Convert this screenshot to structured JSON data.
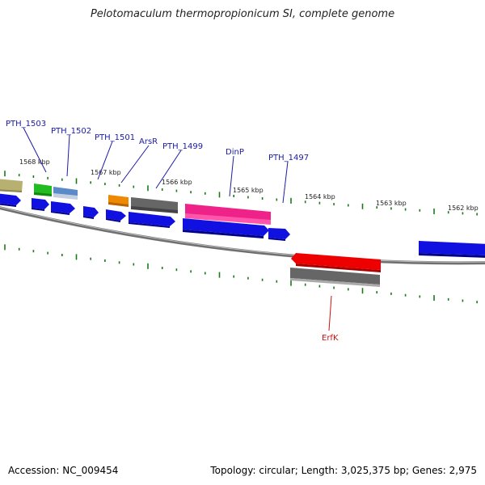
{
  "header": {
    "title": "Pelotomaculum thermopropionicum SI, complete genome"
  },
  "footer": {
    "accession": "Accession: NC_009454",
    "summary": "Topology: circular; Length: 3,025,375 bp; Genes: 2,975"
  },
  "scale_labels": [
    "1568 kbp",
    "1567 kbp",
    "1566 kbp",
    "1565 kbp",
    "1564 kbp",
    "1563 kbp",
    "1562 kbp"
  ],
  "gene_labels": [
    {
      "name": "PTH_1503",
      "strand": "plus"
    },
    {
      "name": "PTH_1502",
      "strand": "plus"
    },
    {
      "name": "PTH_1501",
      "strand": "plus"
    },
    {
      "name": "ArsR",
      "strand": "plus"
    },
    {
      "name": "PTH_1499",
      "strand": "plus"
    },
    {
      "name": "DinP",
      "strand": "plus"
    },
    {
      "name": "PTH_1497",
      "strand": "plus"
    },
    {
      "name": "ErfK",
      "strand": "minus"
    }
  ],
  "colors": {
    "backbone": "#8a8a8a",
    "cds": "#1010e0",
    "tick": "#1a7a1a",
    "olive": "#b8b070",
    "green": "#22bb22",
    "steelblue": "#5a8ac8",
    "orange": "#ee8800",
    "gray": "#666666",
    "pink": "#ee2288",
    "red": "#ee0000",
    "label_plus": "#1a1aa6",
    "label_minus": "#cc1111"
  }
}
